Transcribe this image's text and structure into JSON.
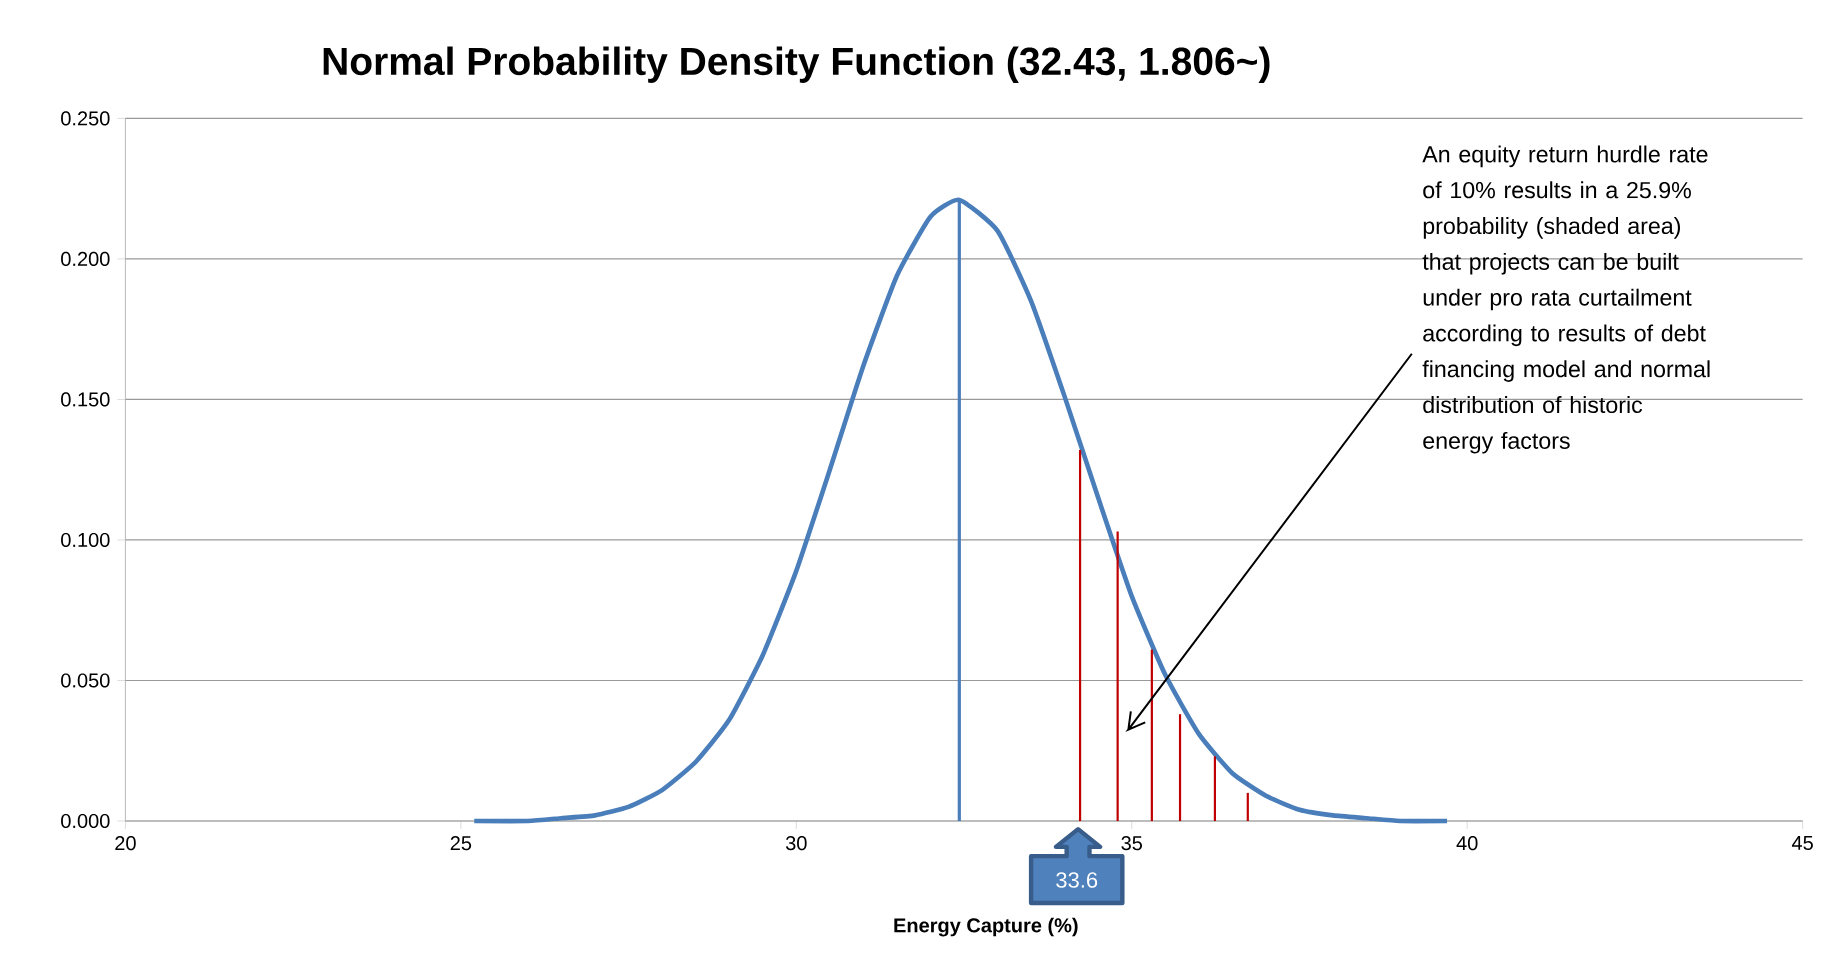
{
  "chart_data": {
    "type": "line",
    "title": "Normal Probability Density Function (32.43, 1.806~)",
    "xlabel": "Energy Capture (%)",
    "xlim": [
      20,
      45
    ],
    "xticks": [
      20,
      25,
      30,
      35,
      40,
      45
    ],
    "ylim": [
      0,
      0.25
    ],
    "yticks": [
      {
        "value": 0,
        "label": "0.000"
      },
      {
        "value": 0.05,
        "label": "0.050"
      },
      {
        "value": 0.1,
        "label": "0.100"
      },
      {
        "value": 0.15,
        "label": "0.150"
      },
      {
        "value": 0.2,
        "label": "0.200"
      },
      {
        "value": 0.25,
        "label": "0.250"
      }
    ],
    "grid": "y",
    "series": [
      {
        "color": "#4a7ebb",
        "x": [
          25.2,
          26,
          26.5,
          27,
          27.5,
          28,
          28.5,
          29,
          29.5,
          30,
          30.5,
          31,
          31.5,
          32,
          32.43,
          33,
          33.5,
          34,
          34.5,
          35,
          35.5,
          36,
          36.5,
          37,
          37.5,
          38,
          38.5,
          39,
          39.7
        ],
        "values": [
          0.0,
          0.0,
          0.001,
          0.002,
          0.005,
          0.011,
          0.021,
          0.036,
          0.059,
          0.089,
          0.125,
          0.162,
          0.194,
          0.215,
          0.221,
          0.21,
          0.185,
          0.151,
          0.115,
          0.08,
          0.052,
          0.031,
          0.017,
          0.009,
          0.004,
          0.002,
          0.001,
          0.0,
          0.0
        ]
      },
      {
        "type": "line",
        "color": "#4a7ebb",
        "x": [
          32.43,
          32.43
        ],
        "values": [
          0,
          0.221
        ]
      },
      {
        "type": "bar",
        "color": "#c00000",
        "x": [
          34.23,
          34.79,
          35.3,
          35.72,
          36.24,
          36.73
        ],
        "values": [
          0.132,
          0.103,
          0.061,
          0.038,
          0.023,
          0.01
        ]
      }
    ],
    "annotations": [
      "An equity return hurdle rate of 10% results in a 25.9% probability (shaded area) that projects can be built under pro rata curtailment according to results of debt financing model and normal distribution of historic energy factors",
      {
        "text": "33.6",
        "x": 34.2,
        "y": 0
      }
    ]
  }
}
